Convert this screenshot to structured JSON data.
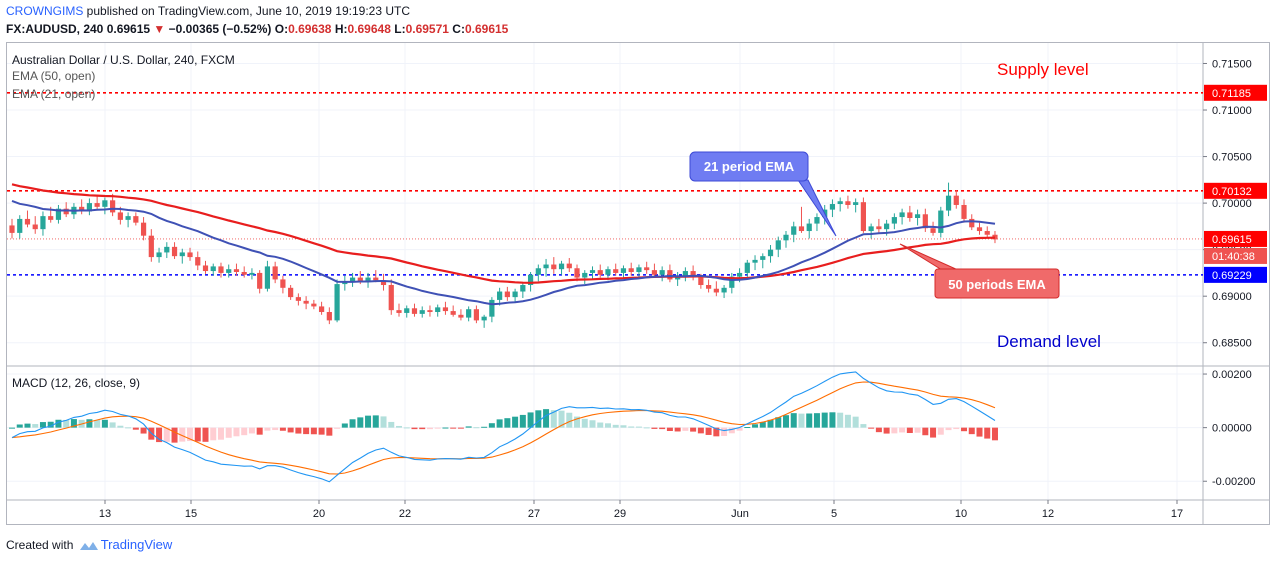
{
  "header": {
    "user": "CROWNGIMS",
    "published": "published on TradingView.com, June 10, 2019 19:19:23 UTC",
    "symbol_line": "FX:AUDUSD, 240 0.69615",
    "change_arrow": "▼",
    "change": "−0.00365 (−0.52%)",
    "o_label": "O:",
    "o_value": "0.69638",
    "h_label": "H:",
    "h_value": "0.69648",
    "l_label": "L:",
    "l_value": "0.69571",
    "c_label": "C:",
    "c_value": "0.69615"
  },
  "footer": {
    "created_with": "Created with",
    "brand": "TradingView"
  },
  "colors": {
    "up": "#26a69a",
    "down": "#ef5350",
    "ema21": "#3f51b5",
    "ema50": "#e81e1e",
    "supply": "#ff0000",
    "demand": "#0000ff",
    "macd": "#2196f3",
    "signal": "#ff6d00"
  },
  "chart_data": [
    {
      "type": "candlestick",
      "title": "Australian Dollar / U.S. Dollar, 240, FXCM",
      "indicators": [
        "EMA (50, open)",
        "EMA (21, open)"
      ],
      "ylim": [
        0.6825,
        0.7172
      ],
      "yticks": [
        "0.71500",
        "0.71000",
        "0.70500",
        "0.70000",
        "0.69500",
        "0.69000",
        "0.68500"
      ],
      "xticks": [
        "13",
        "15",
        "20",
        "22",
        "27",
        "29",
        "Jun",
        "5",
        "10",
        "12",
        "17"
      ],
      "price_labels": [
        {
          "value": 0.71185,
          "text": "0.71185",
          "color": "#ff0000"
        },
        {
          "value": 0.70132,
          "text": "0.70132",
          "color": "#ff0000"
        },
        {
          "value": 0.69615,
          "text": "0.69615",
          "color": "#ff0000"
        },
        {
          "value": 0.69229,
          "text": "0.69229",
          "color": "#0000ff"
        }
      ],
      "countdown": "01:40:38",
      "annotations": {
        "supply": "Supply level",
        "demand": "Demand level",
        "ema21_callout": "21 period EMA",
        "ema50_callout": "50 periods EMA"
      },
      "candles": [
        [
          0.6976,
          0.6983,
          0.6962,
          0.6968
        ],
        [
          0.6968,
          0.6987,
          0.6962,
          0.6983
        ],
        [
          0.6983,
          0.6992,
          0.6974,
          0.6977
        ],
        [
          0.6977,
          0.6986,
          0.6967,
          0.6972
        ],
        [
          0.6972,
          0.6991,
          0.6965,
          0.6986
        ],
        [
          0.6986,
          0.6996,
          0.6979,
          0.6982
        ],
        [
          0.6982,
          0.6998,
          0.6978,
          0.6994
        ],
        [
          0.6994,
          0.7001,
          0.6985,
          0.6988
        ],
        [
          0.6988,
          0.7,
          0.6983,
          0.6996
        ],
        [
          0.6996,
          0.7004,
          0.6988,
          0.6991
        ],
        [
          0.6991,
          0.7005,
          0.6987,
          0.7
        ],
        [
          0.7,
          0.7008,
          0.6992,
          0.6996
        ],
        [
          0.6996,
          0.7006,
          0.6988,
          0.7003
        ],
        [
          0.7003,
          0.701,
          0.6986,
          0.699
        ],
        [
          0.699,
          0.6996,
          0.6977,
          0.6982
        ],
        [
          0.6982,
          0.699,
          0.6974,
          0.6986
        ],
        [
          0.6986,
          0.699,
          0.6976,
          0.6979
        ],
        [
          0.6979,
          0.6985,
          0.696,
          0.6965
        ],
        [
          0.6965,
          0.6972,
          0.6937,
          0.6942
        ],
        [
          0.6942,
          0.6952,
          0.6936,
          0.6947
        ],
        [
          0.6947,
          0.6958,
          0.6941,
          0.6953
        ],
        [
          0.6953,
          0.6958,
          0.694,
          0.6943
        ],
        [
          0.6943,
          0.6951,
          0.6935,
          0.6947
        ],
        [
          0.6947,
          0.6952,
          0.6938,
          0.6942
        ],
        [
          0.6942,
          0.6948,
          0.6928,
          0.6933
        ],
        [
          0.6933,
          0.6938,
          0.6924,
          0.6927
        ],
        [
          0.6927,
          0.6935,
          0.6922,
          0.6932
        ],
        [
          0.6932,
          0.6936,
          0.692,
          0.6925
        ],
        [
          0.6925,
          0.6934,
          0.692,
          0.6929
        ],
        [
          0.6929,
          0.6935,
          0.6922,
          0.6926
        ],
        [
          0.6926,
          0.6932,
          0.692,
          0.6923
        ],
        [
          0.6923,
          0.693,
          0.6918,
          0.6925
        ],
        [
          0.6925,
          0.6928,
          0.6903,
          0.6908
        ],
        [
          0.6908,
          0.6938,
          0.6905,
          0.6932
        ],
        [
          0.6932,
          0.6937,
          0.6914,
          0.6918
        ],
        [
          0.6918,
          0.6922,
          0.6903,
          0.6909
        ],
        [
          0.6909,
          0.6912,
          0.6896,
          0.6899
        ],
        [
          0.6899,
          0.6903,
          0.689,
          0.6895
        ],
        [
          0.6895,
          0.69,
          0.6886,
          0.6892
        ],
        [
          0.6892,
          0.6896,
          0.6886,
          0.6889
        ],
        [
          0.6889,
          0.6894,
          0.688,
          0.6883
        ],
        [
          0.6883,
          0.6888,
          0.687,
          0.6874
        ],
        [
          0.6874,
          0.6918,
          0.6872,
          0.6913
        ],
        [
          0.6913,
          0.6922,
          0.6906,
          0.6916
        ],
        [
          0.6916,
          0.6925,
          0.691,
          0.692
        ],
        [
          0.692,
          0.6927,
          0.6913,
          0.6916
        ],
        [
          0.6916,
          0.6925,
          0.6909,
          0.692
        ],
        [
          0.692,
          0.6928,
          0.6915,
          0.6917
        ],
        [
          0.6917,
          0.6924,
          0.6906,
          0.6912
        ],
        [
          0.6912,
          0.6918,
          0.688,
          0.6885
        ],
        [
          0.6885,
          0.6892,
          0.6878,
          0.6882
        ],
        [
          0.6882,
          0.689,
          0.6877,
          0.6887
        ],
        [
          0.6887,
          0.6892,
          0.6878,
          0.6881
        ],
        [
          0.6881,
          0.6889,
          0.6877,
          0.6885
        ],
        [
          0.6885,
          0.689,
          0.6878,
          0.6883
        ],
        [
          0.6883,
          0.6891,
          0.6878,
          0.6888
        ],
        [
          0.6888,
          0.6894,
          0.688,
          0.6884
        ],
        [
          0.6884,
          0.689,
          0.6878,
          0.688
        ],
        [
          0.688,
          0.6886,
          0.6874,
          0.6877
        ],
        [
          0.6877,
          0.6889,
          0.6873,
          0.6886
        ],
        [
          0.6886,
          0.689,
          0.6871,
          0.6874
        ],
        [
          0.6874,
          0.688,
          0.6866,
          0.6878
        ],
        [
          0.6878,
          0.6899,
          0.6872,
          0.6896
        ],
        [
          0.6896,
          0.6909,
          0.689,
          0.6905
        ],
        [
          0.6905,
          0.691,
          0.6895,
          0.6899
        ],
        [
          0.6899,
          0.6908,
          0.6894,
          0.6905
        ],
        [
          0.6905,
          0.6915,
          0.6898,
          0.6912
        ],
        [
          0.6912,
          0.6926,
          0.6905,
          0.6923
        ],
        [
          0.6923,
          0.6934,
          0.6916,
          0.693
        ],
        [
          0.693,
          0.694,
          0.6921,
          0.6934
        ],
        [
          0.6934,
          0.6942,
          0.6924,
          0.6929
        ],
        [
          0.6929,
          0.6938,
          0.6923,
          0.6935
        ],
        [
          0.6935,
          0.6941,
          0.6926,
          0.693
        ],
        [
          0.693,
          0.6934,
          0.6916,
          0.692
        ],
        [
          0.692,
          0.6928,
          0.6913,
          0.6925
        ],
        [
          0.6925,
          0.6932,
          0.6918,
          0.6928
        ],
        [
          0.6928,
          0.6934,
          0.692,
          0.6923
        ],
        [
          0.6923,
          0.6932,
          0.6917,
          0.6929
        ],
        [
          0.6929,
          0.6935,
          0.6922,
          0.6925
        ],
        [
          0.6925,
          0.6933,
          0.6919,
          0.693
        ],
        [
          0.693,
          0.6936,
          0.6922,
          0.6926
        ],
        [
          0.6926,
          0.6934,
          0.692,
          0.6931
        ],
        [
          0.6931,
          0.6937,
          0.6924,
          0.6928
        ],
        [
          0.6928,
          0.6935,
          0.692,
          0.6923
        ],
        [
          0.6923,
          0.6932,
          0.6916,
          0.6928
        ],
        [
          0.6928,
          0.6934,
          0.6915,
          0.6918
        ],
        [
          0.6918,
          0.6926,
          0.6911,
          0.6922
        ],
        [
          0.6922,
          0.6931,
          0.6916,
          0.6927
        ],
        [
          0.6927,
          0.6933,
          0.6917,
          0.692
        ],
        [
          0.692,
          0.6924,
          0.6908,
          0.6912
        ],
        [
          0.6912,
          0.6918,
          0.6904,
          0.6908
        ],
        [
          0.6908,
          0.6916,
          0.69,
          0.6904
        ],
        [
          0.6904,
          0.6912,
          0.6898,
          0.6909
        ],
        [
          0.6909,
          0.6925,
          0.6903,
          0.6921
        ],
        [
          0.6921,
          0.693,
          0.6915,
          0.6925
        ],
        [
          0.6925,
          0.6939,
          0.6918,
          0.6936
        ],
        [
          0.6936,
          0.6944,
          0.6928,
          0.6939
        ],
        [
          0.6939,
          0.6946,
          0.693,
          0.6943
        ],
        [
          0.6943,
          0.6955,
          0.6936,
          0.695
        ],
        [
          0.695,
          0.6964,
          0.6942,
          0.696
        ],
        [
          0.696,
          0.697,
          0.6952,
          0.6966
        ],
        [
          0.6966,
          0.698,
          0.6958,
          0.6975
        ],
        [
          0.6975,
          0.6996,
          0.6968,
          0.697
        ],
        [
          0.697,
          0.6983,
          0.6962,
          0.6978
        ],
        [
          0.6978,
          0.6989,
          0.697,
          0.6985
        ],
        [
          0.6985,
          0.6998,
          0.6977,
          0.6993
        ],
        [
          0.6993,
          0.7004,
          0.6985,
          0.6999
        ],
        [
          0.6999,
          0.7006,
          0.6991,
          0.7002
        ],
        [
          0.7002,
          0.7008,
          0.6994,
          0.6998
        ],
        [
          0.6998,
          0.7005,
          0.699,
          0.7001
        ],
        [
          0.7001,
          0.7006,
          0.6968,
          0.697
        ],
        [
          0.697,
          0.6978,
          0.6962,
          0.6975
        ],
        [
          0.6975,
          0.6983,
          0.6968,
          0.6972
        ],
        [
          0.6972,
          0.6982,
          0.6965,
          0.6978
        ],
        [
          0.6978,
          0.6989,
          0.6972,
          0.6985
        ],
        [
          0.6985,
          0.6994,
          0.6977,
          0.699
        ],
        [
          0.699,
          0.6997,
          0.698,
          0.6984
        ],
        [
          0.6984,
          0.6993,
          0.6976,
          0.6988
        ],
        [
          0.6988,
          0.6994,
          0.6969,
          0.6973
        ],
        [
          0.6973,
          0.698,
          0.6965,
          0.6968
        ],
        [
          0.6968,
          0.6996,
          0.6963,
          0.6992
        ],
        [
          0.6992,
          0.7022,
          0.6986,
          0.7008
        ],
        [
          0.7008,
          0.7014,
          0.6994,
          0.6998
        ],
        [
          0.6998,
          0.7004,
          0.6979,
          0.6983
        ],
        [
          0.6983,
          0.6988,
          0.6971,
          0.6974
        ],
        [
          0.6974,
          0.6979,
          0.6966,
          0.697
        ],
        [
          0.697,
          0.6975,
          0.6962,
          0.6966
        ],
        [
          0.6966,
          0.697,
          0.6957,
          0.6961
        ]
      ]
    },
    {
      "type": "histogram+line",
      "title": "MACD (12, 26, close, 9)",
      "ylim": [
        -0.0027,
        0.0023
      ],
      "yticks": [
        "0.00200",
        "0.00000",
        "-0.00200"
      ],
      "series": [
        "MACD",
        "Signal",
        "Histogram"
      ]
    }
  ]
}
